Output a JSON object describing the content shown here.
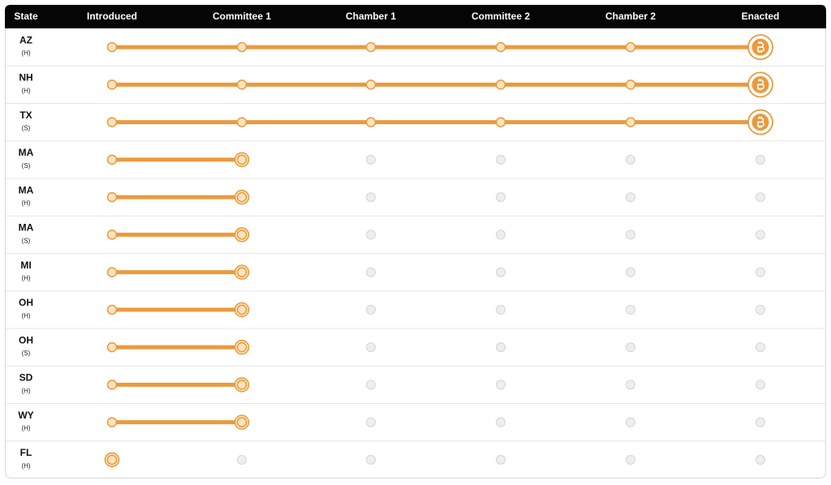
{
  "table": {
    "columns": [
      "State",
      "Introduced",
      "Committee 1",
      "Chamber 1",
      "Committee 2",
      "Chamber 2",
      "Enacted"
    ],
    "rows": [
      {
        "state": "AZ",
        "chamber": "(H)",
        "stage": 5
      },
      {
        "state": "NH",
        "chamber": "(H)",
        "stage": 5
      },
      {
        "state": "TX",
        "chamber": "(S)",
        "stage": 5
      },
      {
        "state": "MA",
        "chamber": "(S)",
        "stage": 1
      },
      {
        "state": "MA",
        "chamber": "(H)",
        "stage": 1
      },
      {
        "state": "MA",
        "chamber": "(S)",
        "stage": 1
      },
      {
        "state": "MI",
        "chamber": "(H)",
        "stage": 1
      },
      {
        "state": "OH",
        "chamber": "(H)",
        "stage": 1
      },
      {
        "state": "OH",
        "chamber": "(S)",
        "stage": 1
      },
      {
        "state": "SD",
        "chamber": "(H)",
        "stage": 1
      },
      {
        "state": "WY",
        "chamber": "(H)",
        "stage": 1
      },
      {
        "state": "FL",
        "chamber": "(H)",
        "stage": 0
      }
    ]
  }
}
